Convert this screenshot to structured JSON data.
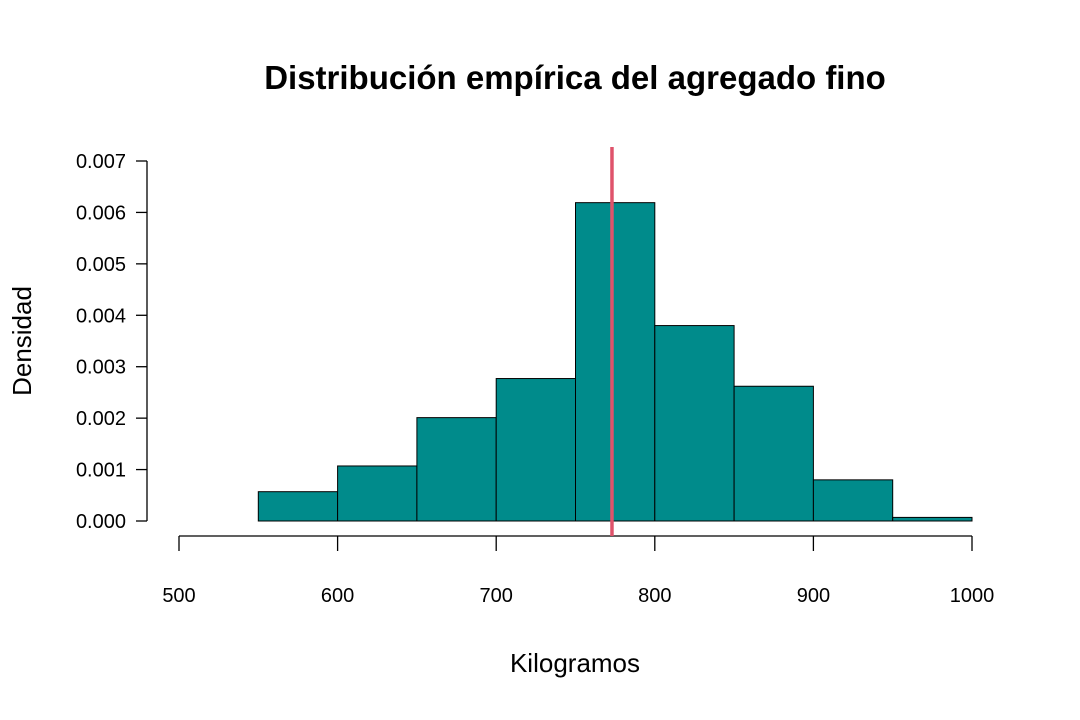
{
  "chart_data": {
    "type": "bar",
    "subtype": "histogram",
    "title": "Distribución empírica del agregado fino",
    "xlabel": "Kilogramos",
    "ylabel": "Densidad",
    "bins": [
      {
        "x0": 550,
        "x1": 600,
        "density": 0.00057
      },
      {
        "x0": 600,
        "x1": 650,
        "density": 0.00107
      },
      {
        "x0": 650,
        "x1": 700,
        "density": 0.00201
      },
      {
        "x0": 700,
        "x1": 750,
        "density": 0.00277
      },
      {
        "x0": 750,
        "x1": 800,
        "density": 0.00619
      },
      {
        "x0": 800,
        "x1": 850,
        "density": 0.0038
      },
      {
        "x0": 850,
        "x1": 900,
        "density": 0.00262
      },
      {
        "x0": 900,
        "x1": 950,
        "density": 0.0008
      },
      {
        "x0": 950,
        "x1": 1000,
        "density": 7e-05
      }
    ],
    "xticks": [
      "500",
      "600",
      "700",
      "800",
      "900",
      "1000"
    ],
    "xtick_values": [
      500,
      600,
      700,
      800,
      900,
      1000
    ],
    "yticks": [
      "0.000",
      "0.001",
      "0.002",
      "0.003",
      "0.004",
      "0.005",
      "0.006",
      "0.007"
    ],
    "ytick_values": [
      0,
      0.001,
      0.002,
      0.003,
      0.004,
      0.005,
      0.006,
      0.007
    ],
    "xlim": [
      500,
      1000
    ],
    "ylim": [
      0,
      0.007
    ],
    "bar_color": "#008B8B",
    "bar_border_color": "#000000",
    "reference_line": {
      "x": 773,
      "color": "#DF536B"
    },
    "grid": false
  }
}
